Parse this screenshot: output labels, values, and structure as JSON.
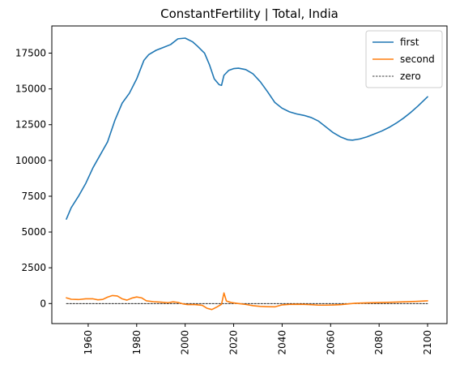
{
  "chart_data": {
    "type": "line",
    "title": "ConstantFertility | Total, India",
    "xlabel": "",
    "ylabel": "",
    "xlim": [
      1945,
      2108
    ],
    "ylim": [
      -1400,
      19400
    ],
    "x_ticks": [
      1960,
      1980,
      2000,
      2020,
      2040,
      2060,
      2080,
      2100
    ],
    "y_ticks": [
      0,
      2500,
      5000,
      7500,
      10000,
      12500,
      15000,
      17500
    ],
    "y_tick_labels": [
      "0",
      "2500",
      "5000",
      "7500",
      "10000",
      "12500",
      "15000",
      "17500"
    ],
    "legend_position": "top-right",
    "grid": false,
    "series": [
      {
        "name": "first",
        "color": "#1f77b4",
        "style": "solid",
        "points": [
          [
            1951,
            5900
          ],
          [
            1953,
            6700
          ],
          [
            1956,
            7500
          ],
          [
            1959,
            8400
          ],
          [
            1962,
            9500
          ],
          [
            1965,
            10400
          ],
          [
            1968,
            11300
          ],
          [
            1971,
            12800
          ],
          [
            1974,
            14000
          ],
          [
            1977,
            14700
          ],
          [
            1980,
            15700
          ],
          [
            1983,
            17000
          ],
          [
            1985,
            17400
          ],
          [
            1988,
            17700
          ],
          [
            1991,
            17900
          ],
          [
            1994,
            18100
          ],
          [
            1997,
            18500
          ],
          [
            2000,
            18550
          ],
          [
            2003,
            18300
          ],
          [
            2005,
            18000
          ],
          [
            2008,
            17500
          ],
          [
            2010,
            16700
          ],
          [
            2012,
            15700
          ],
          [
            2014,
            15300
          ],
          [
            2015,
            15250
          ],
          [
            2016,
            15950
          ],
          [
            2018,
            16300
          ],
          [
            2020,
            16420
          ],
          [
            2022,
            16450
          ],
          [
            2025,
            16350
          ],
          [
            2028,
            16050
          ],
          [
            2031,
            15500
          ],
          [
            2034,
            14800
          ],
          [
            2037,
            14050
          ],
          [
            2040,
            13650
          ],
          [
            2043,
            13400
          ],
          [
            2046,
            13250
          ],
          [
            2049,
            13150
          ],
          [
            2052,
            13000
          ],
          [
            2055,
            12750
          ],
          [
            2058,
            12350
          ],
          [
            2061,
            11950
          ],
          [
            2064,
            11650
          ],
          [
            2067,
            11450
          ],
          [
            2069,
            11420
          ],
          [
            2072,
            11500
          ],
          [
            2075,
            11650
          ],
          [
            2078,
            11850
          ],
          [
            2081,
            12050
          ],
          [
            2084,
            12300
          ],
          [
            2087,
            12600
          ],
          [
            2090,
            12950
          ],
          [
            2093,
            13350
          ],
          [
            2096,
            13800
          ],
          [
            2100,
            14450
          ]
        ]
      },
      {
        "name": "second",
        "color": "#ff7f0e",
        "style": "solid",
        "points": [
          [
            1951,
            400
          ],
          [
            1953,
            300
          ],
          [
            1956,
            280
          ],
          [
            1959,
            330
          ],
          [
            1962,
            330
          ],
          [
            1964,
            260
          ],
          [
            1966,
            290
          ],
          [
            1968,
            450
          ],
          [
            1970,
            560
          ],
          [
            1972,
            530
          ],
          [
            1974,
            330
          ],
          [
            1976,
            240
          ],
          [
            1978,
            380
          ],
          [
            1980,
            460
          ],
          [
            1982,
            400
          ],
          [
            1984,
            190
          ],
          [
            1987,
            130
          ],
          [
            1990,
            100
          ],
          [
            1993,
            60
          ],
          [
            1995,
            120
          ],
          [
            1997,
            80
          ],
          [
            1999,
            -20
          ],
          [
            2001,
            -70
          ],
          [
            2004,
            -70
          ],
          [
            2007,
            -120
          ],
          [
            2009,
            -330
          ],
          [
            2011,
            -420
          ],
          [
            2013,
            -250
          ],
          [
            2015,
            -50
          ],
          [
            2016,
            740
          ],
          [
            2017,
            180
          ],
          [
            2019,
            70
          ],
          [
            2022,
            0
          ],
          [
            2025,
            -60
          ],
          [
            2028,
            -150
          ],
          [
            2031,
            -200
          ],
          [
            2034,
            -220
          ],
          [
            2037,
            -230
          ],
          [
            2040,
            -90
          ],
          [
            2043,
            -60
          ],
          [
            2046,
            -50
          ],
          [
            2049,
            -60
          ],
          [
            2052,
            -80
          ],
          [
            2055,
            -110
          ],
          [
            2058,
            -110
          ],
          [
            2061,
            -100
          ],
          [
            2064,
            -80
          ],
          [
            2067,
            -30
          ],
          [
            2070,
            20
          ],
          [
            2075,
            50
          ],
          [
            2080,
            70
          ],
          [
            2085,
            90
          ],
          [
            2090,
            120
          ],
          [
            2095,
            150
          ],
          [
            2100,
            190
          ]
        ]
      },
      {
        "name": "zero",
        "color": "#000000",
        "style": "dashed",
        "points": [
          [
            1951,
            0
          ],
          [
            2100,
            0
          ]
        ]
      }
    ]
  }
}
